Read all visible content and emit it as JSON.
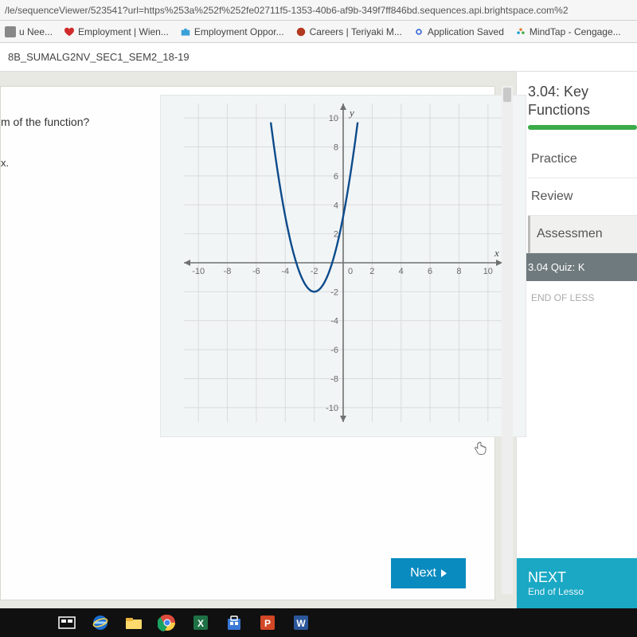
{
  "url": "/le/sequenceViewer/523541?url=https%253a%252f%252fe02711f5-1353-40b6-af9b-349f7ff846bd.sequences.api.brightspace.com%2",
  "bookmarks": [
    {
      "label": "u Nee...",
      "color": "#888888"
    },
    {
      "label": "Employment | Wien...",
      "color": "#d02a2a"
    },
    {
      "label": "Employment Oppor...",
      "color": "#3aa0d8"
    },
    {
      "label": "Careers | Teriyaki M...",
      "color": "#b33a1f"
    },
    {
      "label": "Application Saved",
      "color": "#3a6bd8"
    },
    {
      "label": "MindTap - Cengage...",
      "color": "#e07b2a"
    }
  ],
  "course": {
    "title": "8B_SUMALG2NV_SEC1_SEM2_18-19"
  },
  "question": {
    "prompt_fragment": "m of the function?",
    "option_fragment": "x.",
    "next_label": "Next"
  },
  "graph": {
    "xlim": [
      -11,
      11
    ],
    "ylim": [
      -11,
      11
    ],
    "xticks": [
      -10,
      -8,
      -6,
      -4,
      -2,
      0,
      2,
      4,
      6,
      8,
      10
    ],
    "yticks": [
      -10,
      -8,
      -6,
      -4,
      -2,
      2,
      4,
      6,
      8,
      10
    ],
    "grid_step": 2,
    "grid_color": "#d9dcdc",
    "axis_color": "#6f7270",
    "bg_color": "#f2f5f6",
    "curve": {
      "color": "#0d4b8c",
      "width": 2.4,
      "vertex": [
        -2,
        -2
      ],
      "a": 1.3,
      "x_from": -5.0,
      "x_to": 1.0
    },
    "xlabel": "x",
    "ylabel": "y"
  },
  "side": {
    "title_line1": "3.04: Key",
    "title_line2": "Functions",
    "progress_pct": 100,
    "items": [
      {
        "label": "Practice",
        "active": false
      },
      {
        "label": "Review",
        "active": false
      },
      {
        "label": "Assessmen",
        "active": true
      }
    ],
    "sub_label": "3.04 Quiz: K",
    "end_label": "END OF LESS",
    "next_big": "NEXT",
    "next_small": "End of Lesso"
  },
  "taskbar": {
    "bg": "#101010",
    "icons": [
      "taskview",
      "ie",
      "explorer",
      "chrome",
      "excel",
      "store",
      "powerpoint",
      "word"
    ]
  }
}
